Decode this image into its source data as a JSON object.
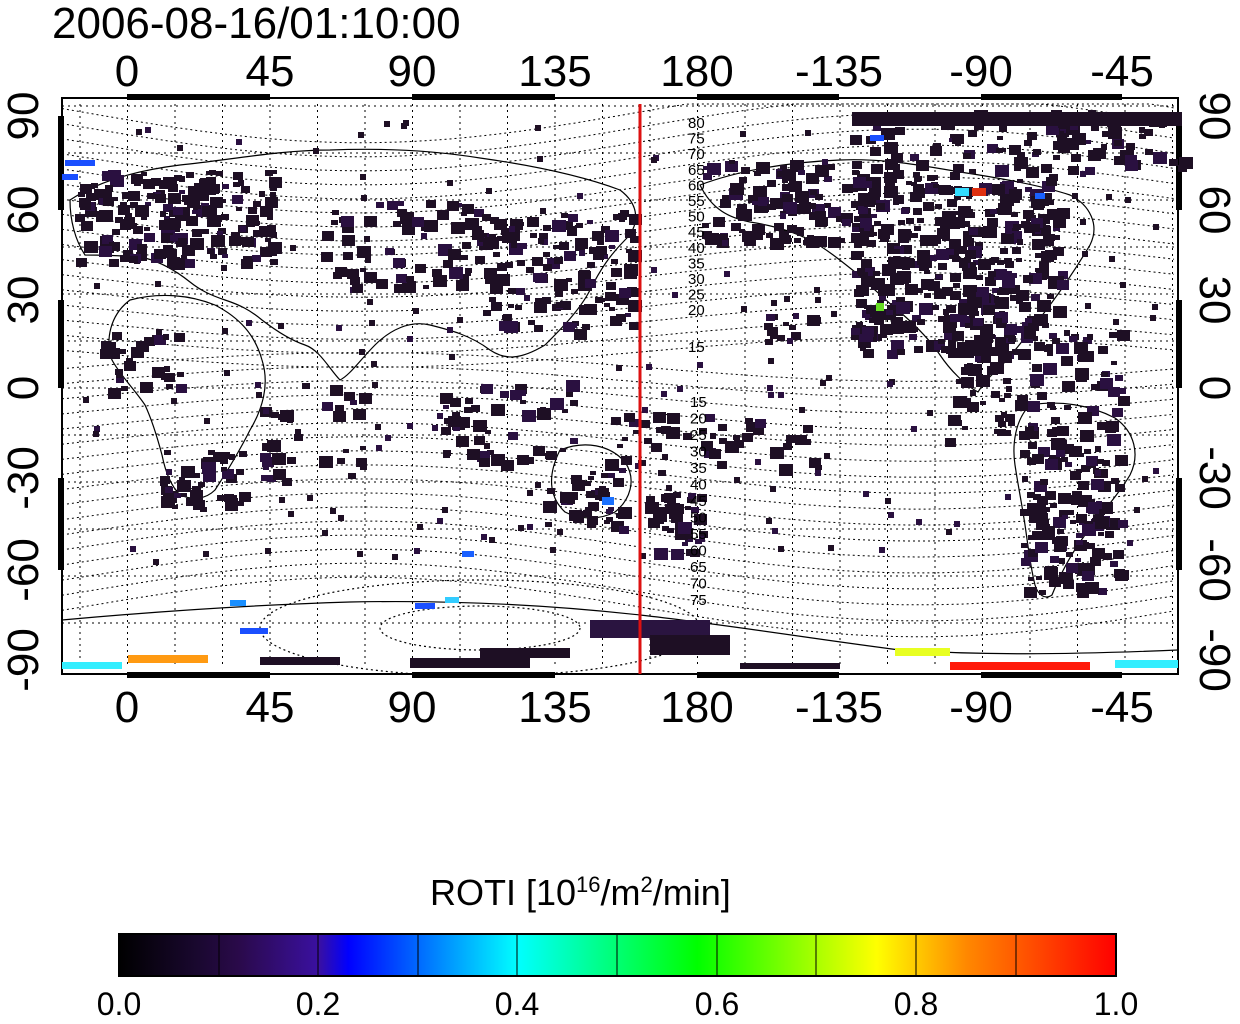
{
  "title": "2006-08-16/01:10:00",
  "longitude_ticks": [
    "0",
    "45",
    "90",
    "135",
    "180",
    "-135",
    "-90",
    "-45"
  ],
  "latitude_ticks": [
    "90",
    "60",
    "30",
    "0",
    "-30",
    "-60",
    "-90"
  ],
  "contour_labels_north": [
    "80",
    "75",
    "70",
    "65",
    "60",
    "55",
    "50",
    "45",
    "40",
    "35",
    "30",
    "25",
    "20",
    "15"
  ],
  "contour_labels_south": [
    "15",
    "20",
    "25",
    "30",
    "35",
    "40",
    "45",
    "50",
    "55",
    "60",
    "65",
    "70",
    "75"
  ],
  "marker_line": {
    "longitude": 163,
    "color": "#dd1111"
  },
  "colorbar": {
    "label_main": "ROTI  [10",
    "label_exp1": "16",
    "label_mid": "/m",
    "label_exp2": "2",
    "label_end": "/min]",
    "ticks": [
      "0.0",
      "0.2",
      "0.4",
      "0.6",
      "0.8",
      "1.0"
    ],
    "min": 0.0,
    "max": 1.0,
    "colors": [
      "#000000",
      "#2a0a4a",
      "#3c1080",
      "#0000ff",
      "#00ffff",
      "#00ff00",
      "#ffff00",
      "#ff7f00",
      "#ff0000"
    ]
  },
  "colors": {
    "land_patch": "#1e0f24",
    "land_patch_alt": "#2a1040",
    "coastline": "#000000",
    "grid": "#000000"
  }
}
